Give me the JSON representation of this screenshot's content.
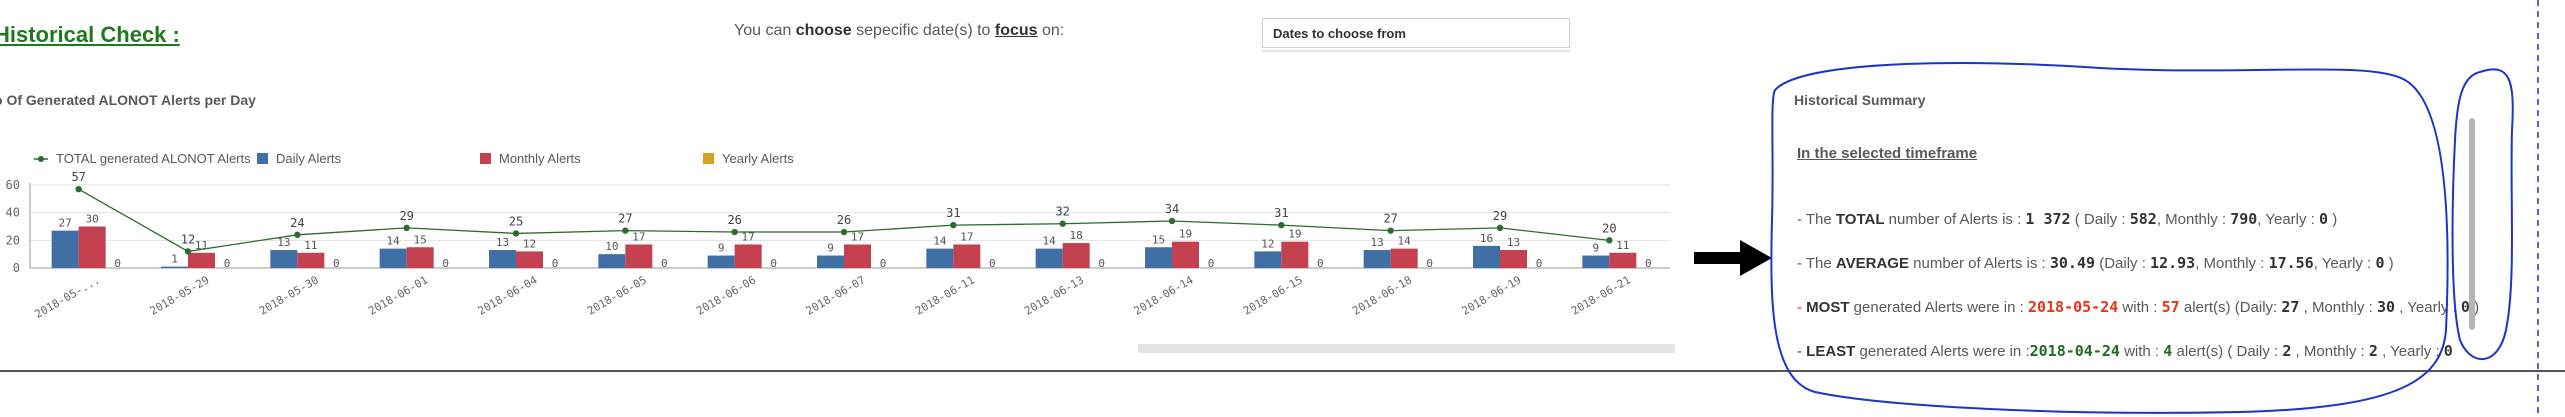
{
  "header": {
    "title": "Historical Check :",
    "focus_prefix": "You can ",
    "focus_choose": "choose",
    "focus_mid": " sepecific date(s) to ",
    "focus_word": "focus",
    "focus_suffix": " on:",
    "dates_placeholder": "Dates to choose from"
  },
  "chart": {
    "title": "o Of Generated ALONOT Alerts per Day",
    "legend": [
      {
        "label": "TOTAL generated ALONOT Alerts",
        "color": "#2e6b2e"
      },
      {
        "label": "Daily Alerts",
        "color": "#3f6fa5"
      },
      {
        "label": "Monthly Alerts",
        "color": "#c3404f"
      },
      {
        "label": "Yearly Alerts",
        "color": "#d6a520"
      }
    ]
  },
  "chart_data": {
    "type": "bar",
    "title": "o Of Generated ALONOT Alerts per Day",
    "categories": [
      "2018-05-...",
      "2018-05-29",
      "2018-05-30",
      "2018-06-01",
      "2018-06-04",
      "2018-06-05",
      "2018-06-06",
      "2018-06-07",
      "2018-06-11",
      "2018-06-13",
      "2018-06-14",
      "2018-06-15",
      "2018-06-18",
      "2018-06-19",
      "2018-06-21"
    ],
    "series": [
      {
        "name": "Daily Alerts",
        "type": "bar",
        "values": [
          27,
          1,
          13,
          14,
          13,
          10,
          9,
          9,
          14,
          14,
          15,
          12,
          13,
          16,
          9
        ]
      },
      {
        "name": "Monthly Alerts",
        "type": "bar",
        "values": [
          30,
          11,
          11,
          15,
          12,
          17,
          17,
          17,
          17,
          18,
          19,
          19,
          14,
          13,
          11
        ]
      },
      {
        "name": "Yearly Alerts",
        "type": "bar",
        "values": [
          0,
          0,
          0,
          0,
          0,
          0,
          0,
          0,
          0,
          0,
          0,
          0,
          0,
          0,
          0
        ]
      },
      {
        "name": "TOTAL generated ALONOT Alerts",
        "type": "line",
        "values": [
          57,
          12,
          24,
          29,
          25,
          27,
          26,
          26,
          31,
          32,
          34,
          31,
          27,
          29,
          20
        ]
      }
    ],
    "yticks": [
      0,
      20,
      40,
      60
    ],
    "ylim": [
      0,
      60
    ],
    "grid": true,
    "legend_position": "top"
  },
  "summary": {
    "title": "Historical Summary",
    "subtitle": "In the selected timeframe",
    "total": {
      "pre": "- The ",
      "key": "TOTAL",
      "mid": " number of Alerts is : ",
      "value": "1 372",
      "d_pre": " ( Daily : ",
      "daily": "582",
      "m_pre": ", Monthly : ",
      "monthly": "790",
      "y_pre": ", Yearly : ",
      "yearly": "0",
      "end": " )"
    },
    "average": {
      "pre": "- The ",
      "key": "AVERAGE",
      "mid": " number of Alerts is : ",
      "value": "30.49",
      "d_pre": " (Daily : ",
      "daily": "12.93",
      "m_pre": ", Monthly : ",
      "monthly": "17.56",
      "y_pre": ", Yearly : ",
      "yearly": "0",
      "end": " )"
    },
    "most": {
      "pre": "- ",
      "key": "MOST",
      "mid": " generated Alerts were in : ",
      "date": "2018-05-24",
      "w_pre": " with : ",
      "count": "57",
      "a_pre": " alert(s) (Daily: ",
      "daily": "27",
      "m_pre": " , Monthly : ",
      "monthly": "30",
      "y_pre": " , Yearly : ",
      "yearly": "0",
      "end": " )"
    },
    "least": {
      "pre": "- ",
      "key": "LEAST",
      "mid": " generated Alerts were in :",
      "date": "2018-04-24",
      "w_pre": " with : ",
      "count": "4",
      "a_pre": " alert(s) ( Daily : ",
      "daily": "2",
      "m_pre": " , Monthly : ",
      "monthly": "2",
      "y_pre": " , Yearly : ",
      "yearly": "0",
      "end": ""
    }
  },
  "colors": {
    "accent_green": "#1f7a1f",
    "daily": "#3f6fa5",
    "monthly": "#c3404f",
    "yearly": "#d6a520",
    "total_line": "#2e6b2e",
    "annotation": "#1c35c8",
    "highlight_red": "#e8331c"
  }
}
